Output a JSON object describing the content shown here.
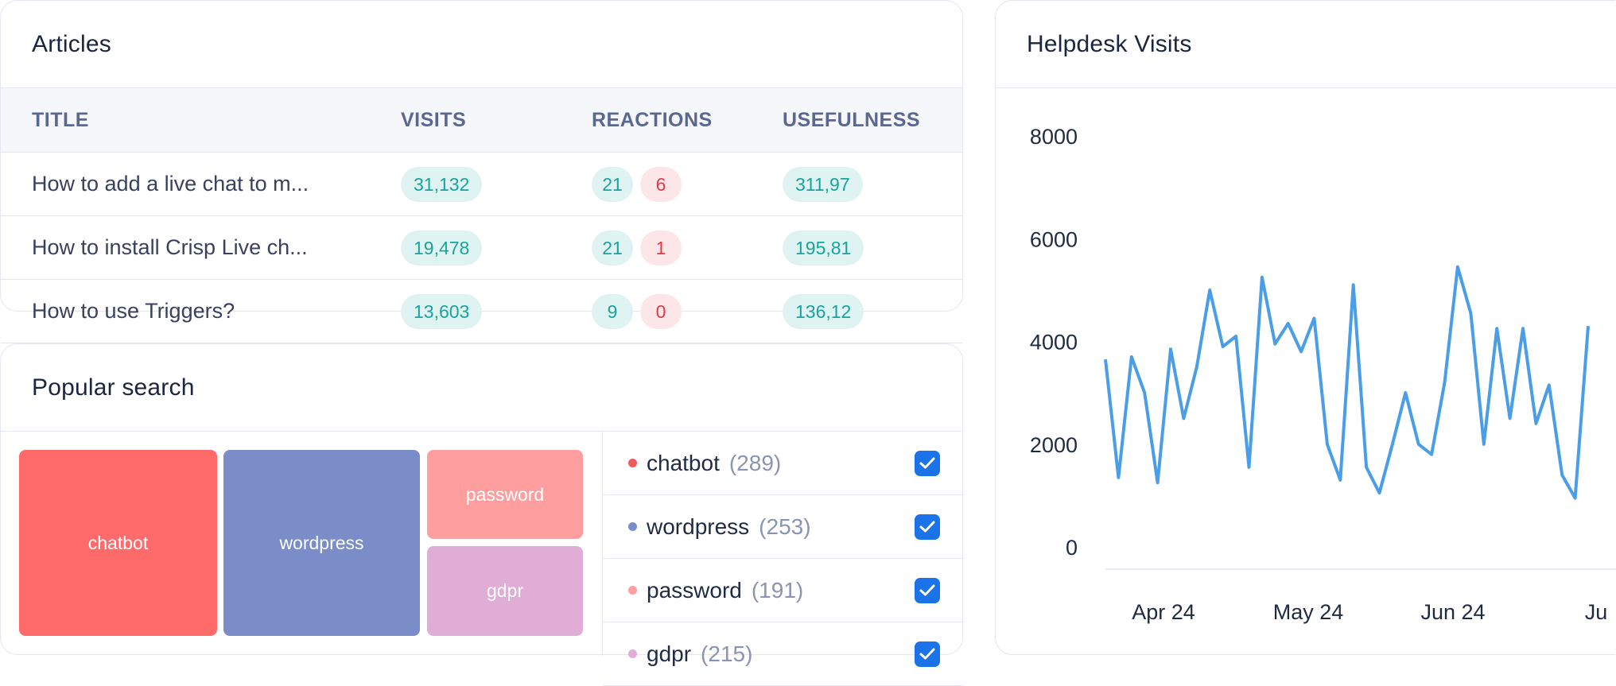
{
  "articles": {
    "title": "Articles",
    "columns": [
      "TITLE",
      "VISITS",
      "REACTIONS",
      "USEFULNESS"
    ],
    "rows": [
      {
        "title": "How to add a live chat to m...",
        "visits": "31,132",
        "reactions_pos": "21",
        "reactions_neg": "6",
        "usefulness": "311,97"
      },
      {
        "title": "How to install Crisp Live ch...",
        "visits": "19,478",
        "reactions_pos": "21",
        "reactions_neg": "1",
        "usefulness": "195,81"
      },
      {
        "title": "How to use Triggers?",
        "visits": "13,603",
        "reactions_pos": "9",
        "reactions_neg": "0",
        "usefulness": "136,12"
      }
    ]
  },
  "popular": {
    "title": "Popular search",
    "tiles": [
      {
        "label": "chatbot",
        "color": "#ff6b6b"
      },
      {
        "label": "wordpress",
        "color": "#7b8dc8"
      },
      {
        "label": "password",
        "color": "#ff9e9e"
      },
      {
        "label": "gdpr",
        "color": "#e0add6"
      }
    ],
    "legend": [
      {
        "name": "chatbot",
        "count": "(289)",
        "color": "#ef5a5a",
        "checked": true
      },
      {
        "name": "wordpress",
        "count": "(253)",
        "color": "#7b8dc8",
        "checked": true
      },
      {
        "name": "password",
        "count": "(191)",
        "color": "#ff9e9e",
        "checked": true
      },
      {
        "name": "gdpr",
        "count": "(215)",
        "color": "#e0add6",
        "checked": true
      }
    ]
  },
  "helpdesk": {
    "title": "Helpdesk Visits",
    "chart_data": {
      "type": "line",
      "title": "",
      "xlabel": "",
      "ylabel": "",
      "ylim": [
        0,
        8000
      ],
      "yticks": [
        "8000",
        "6000",
        "4000",
        "2000",
        "0"
      ],
      "xticks": [
        "Apr 24",
        "May 24",
        "Jun 24",
        "Ju"
      ],
      "color": "#4a9ee8",
      "series": [
        {
          "values": [
            3650,
            1350,
            3700,
            3000,
            1250,
            3850,
            2500,
            3500,
            5000,
            3900,
            4100,
            1550,
            5250,
            3950,
            4350,
            3800,
            4450,
            2000,
            1300,
            5100,
            1550,
            1050,
            2000,
            3000,
            2000,
            1800,
            3200,
            5450,
            4550,
            2000,
            4250,
            2500,
            4250,
            2400,
            3150,
            1400,
            950,
            4300
          ]
        }
      ]
    }
  }
}
